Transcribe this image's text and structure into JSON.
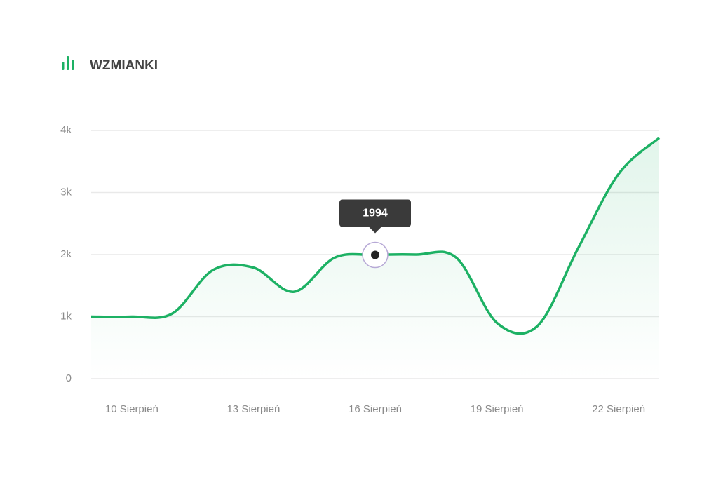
{
  "chart_data": {
    "type": "line",
    "title": "WZMIANKI",
    "categories": [
      null,
      "10 Sierpień",
      null,
      null,
      "13 Sierpień",
      null,
      null,
      "16 Sierpień",
      null,
      null,
      "19 Sierpień",
      null,
      null,
      "22 Sierpień",
      null
    ],
    "series": [
      {
        "name": "Wzmianki",
        "color": "#1db164",
        "values": [
          1000,
          1000,
          1050,
          1750,
          1790,
          1400,
          1950,
          1994,
          2000,
          1950,
          900,
          850,
          2100,
          3300,
          3880
        ]
      }
    ],
    "highlight_index": 7,
    "ylim": [
      0,
      4000
    ],
    "yticks": [
      0,
      {
        "value": 1000,
        "label": "1k"
      },
      {
        "value": 2000,
        "label": "2k"
      },
      {
        "value": 3000,
        "label": "3k"
      },
      {
        "value": 4000,
        "label": "4k"
      }
    ],
    "grid": true
  }
}
